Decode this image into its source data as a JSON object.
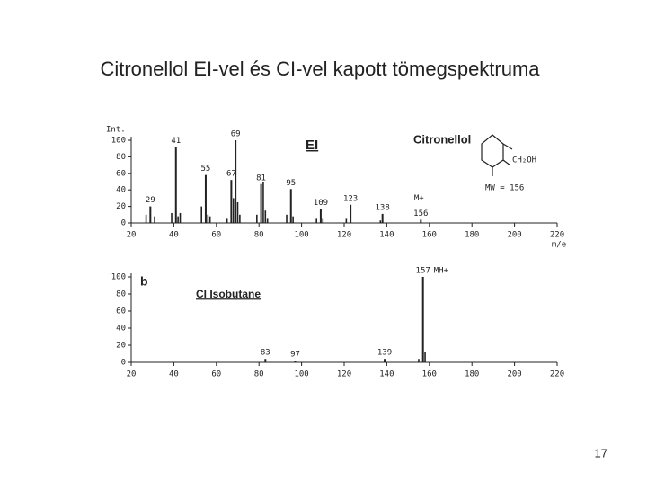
{
  "slide": {
    "title": "Citronellol EI-vel és CI-vel kapott tömegspektruma",
    "page_number": "17"
  },
  "chart_data": [
    {
      "type": "spectrum",
      "y_label": "Int.",
      "x_label": "m/e",
      "method_label": "EI",
      "compound_label": "Citronellol",
      "structure_label": "CH₂OH",
      "mw_label": "MW = 156",
      "ion_label": "M+",
      "xlim": [
        20,
        220
      ],
      "xticks": [
        20,
        40,
        60,
        80,
        100,
        120,
        140,
        160,
        180,
        200,
        220
      ],
      "ylim": [
        0,
        100
      ],
      "yticks": [
        0,
        20,
        40,
        60,
        80,
        100
      ],
      "x": [
        29,
        41,
        55,
        67,
        69,
        81,
        95,
        109,
        123,
        138,
        156
      ],
      "values": [
        20,
        92,
        58,
        52,
        100,
        47,
        41,
        17,
        22,
        11,
        4
      ],
      "minor_x": [
        27,
        31,
        39,
        42,
        43,
        53,
        56,
        57,
        65,
        68,
        70,
        71,
        79,
        82,
        83,
        84,
        93,
        96,
        107,
        110,
        121,
        137
      ],
      "minor_values": [
        10,
        8,
        12,
        8,
        12,
        20,
        10,
        8,
        5,
        30,
        25,
        10,
        10,
        50,
        15,
        5,
        10,
        8,
        5,
        5,
        5,
        3
      ]
    },
    {
      "type": "spectrum",
      "panel_label": "b",
      "method_label": "CI Isobutane",
      "ion_label": "MH+",
      "xlim": [
        20,
        220
      ],
      "xticks": [
        20,
        40,
        60,
        80,
        100,
        120,
        140,
        160,
        180,
        200,
        220
      ],
      "ylim": [
        0,
        100
      ],
      "yticks": [
        0,
        20,
        40,
        60,
        80,
        100
      ],
      "x": [
        83,
        97,
        139,
        157
      ],
      "values": [
        4,
        2,
        4,
        100
      ],
      "minor_x": [
        155,
        158
      ],
      "minor_values": [
        4,
        12
      ]
    }
  ]
}
